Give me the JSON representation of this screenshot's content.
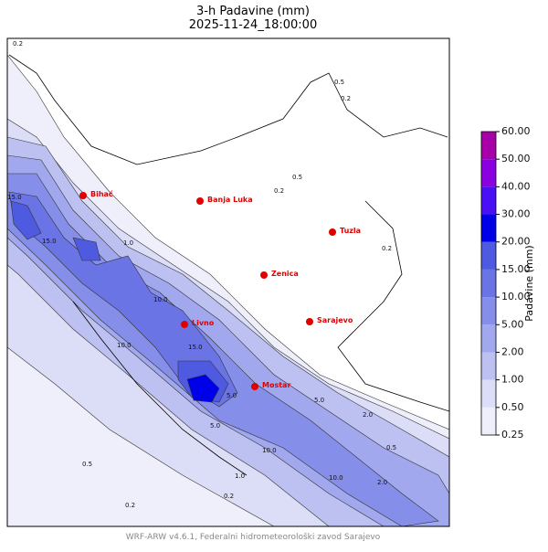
{
  "header": {
    "title": "3-h Padavine (mm)",
    "subtitle": "2025-11-24_18:00:00"
  },
  "map": {
    "cities": [
      "Bihać",
      "Banja Luka",
      "Tuzla",
      "Zenica",
      "Sarajevo",
      "Livno",
      "Mostar"
    ],
    "contour_labels": [
      "0.2",
      "0.5",
      "0.2",
      "0.2",
      "0.5",
      "0.2",
      "15.0",
      "15.0",
      "1.0",
      "10.0",
      "10.0",
      "15.0",
      "5.0",
      "10.0",
      "0.5",
      "0.2",
      "5.0",
      "2.0",
      "10.0",
      "1.0",
      "0.5",
      "0.2",
      "2.0",
      "5.0"
    ]
  },
  "colorbar": {
    "label": "Padavine (mm)",
    "levels": [
      {
        "value": 0.25,
        "label": "0.25"
      },
      {
        "value": 0.5,
        "label": "0.50"
      },
      {
        "value": 1,
        "label": "1.00"
      },
      {
        "value": 2,
        "label": "2.00"
      },
      {
        "value": 5,
        "label": "5.00"
      },
      {
        "value": 10,
        "label": "10.00"
      },
      {
        "value": 15,
        "label": "15.00"
      },
      {
        "value": 20,
        "label": "20.00"
      },
      {
        "value": 30,
        "label": "30.00"
      },
      {
        "value": 40,
        "label": "40.00"
      },
      {
        "value": 50,
        "label": "50.00"
      },
      {
        "value": 60,
        "label": "60.00"
      }
    ],
    "colors": [
      "#efeffc",
      "#dcdef8",
      "#bcc1f2",
      "#a1a8ee",
      "#858ee9",
      "#6a74e4",
      "#4e5ae0",
      "#0000e8",
      "#4a10f5",
      "#8a00e0",
      "#a800a8"
    ]
  },
  "footer": "WRF-ARW v4.6.1, Federalni hidrometeorološki zavod Sarajevo"
}
